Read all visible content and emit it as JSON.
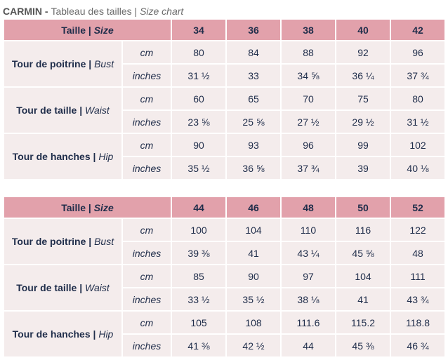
{
  "title": {
    "brand": "CARMIN",
    "sep": " - ",
    "fr": "Tableau des tailles",
    "pipe": " | ",
    "en": "Size chart"
  },
  "tables": [
    {
      "header": {
        "label_fr": "Taille",
        "label_en": "Size",
        "sizes": [
          "34",
          "36",
          "38",
          "40",
          "42"
        ]
      },
      "groups": [
        {
          "fr": "Tour de poitrine",
          "en": "Bust",
          "rows": [
            {
              "unit": "cm",
              "values": [
                "80",
                "84",
                "88",
                "92",
                "96"
              ]
            },
            {
              "unit": "inches",
              "values": [
                "31 ½",
                "33",
                "34 ⅝",
                "36 ¼",
                "37 ¾"
              ]
            }
          ]
        },
        {
          "fr": "Tour de taille",
          "en": "Waist",
          "rows": [
            {
              "unit": "cm",
              "values": [
                "60",
                "65",
                "70",
                "75",
                "80"
              ]
            },
            {
              "unit": "inches",
              "values": [
                "23 ⅝",
                "25 ⅝",
                "27 ½",
                "29 ½",
                "31 ½"
              ]
            }
          ]
        },
        {
          "fr": "Tour de hanches",
          "en": "Hip",
          "rows": [
            {
              "unit": "cm",
              "values": [
                "90",
                "93",
                "96",
                "99",
                "102"
              ]
            },
            {
              "unit": "inches",
              "values": [
                "35 ½",
                "36 ⅝",
                "37 ¾",
                "39",
                "40 ⅛"
              ]
            }
          ]
        }
      ]
    },
    {
      "header": {
        "label_fr": "Taille",
        "label_en": "Size",
        "sizes": [
          "44",
          "46",
          "48",
          "50",
          "52"
        ]
      },
      "groups": [
        {
          "fr": "Tour de poitrine",
          "en": "Bust",
          "rows": [
            {
              "unit": "cm",
              "values": [
                "100",
                "104",
                "110",
                "116",
                "122"
              ]
            },
            {
              "unit": "inches",
              "values": [
                "39 ⅜",
                "41",
                "43 ¼",
                "45 ⅝",
                "48"
              ]
            }
          ]
        },
        {
          "fr": "Tour de taille",
          "en": "Waist",
          "rows": [
            {
              "unit": "cm",
              "values": [
                "85",
                "90",
                "97",
                "104",
                "111"
              ]
            },
            {
              "unit": "inches",
              "values": [
                "33 ½",
                "35 ½",
                "38 ⅛",
                "41",
                "43 ¾"
              ]
            }
          ]
        },
        {
          "fr": "Tour de hanches",
          "en": "Hip",
          "rows": [
            {
              "unit": "cm",
              "values": [
                "105",
                "108",
                "111.6",
                "115.2",
                "118.8"
              ]
            },
            {
              "unit": "inches",
              "values": [
                "41 ⅜",
                "42 ½",
                "44",
                "45 ⅜",
                "46 ¾"
              ]
            }
          ]
        }
      ]
    }
  ]
}
